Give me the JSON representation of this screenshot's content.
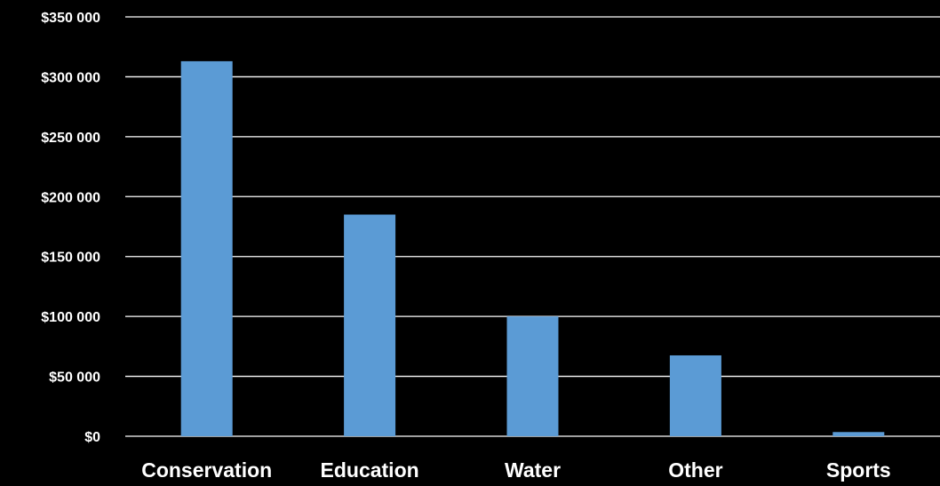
{
  "chart_data": {
    "type": "bar",
    "title": "",
    "xlabel": "",
    "ylabel": "",
    "categories": [
      "Conservation",
      "Education",
      "Water",
      "Other",
      "Sports"
    ],
    "values": [
      313000,
      185000,
      100000,
      67500,
      3500
    ],
    "ylim": [
      0,
      350000
    ],
    "yticks": [
      0,
      50000,
      100000,
      150000,
      200000,
      250000,
      300000,
      350000
    ],
    "ytick_labels": [
      "$0",
      "$50 000",
      "$100 000",
      "$150 000",
      "$200 000",
      "$250 000",
      "$300 000",
      "$350 000"
    ],
    "grid": true,
    "legend": "none",
    "colors": {
      "background": "#000000",
      "bar": "#5b9bd5",
      "grid": "#ffffff",
      "text": "#ffffff"
    }
  }
}
